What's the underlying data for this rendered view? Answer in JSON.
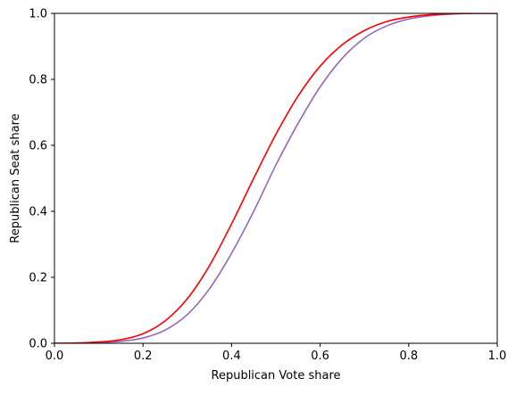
{
  "chart_data": {
    "type": "line",
    "title": "",
    "xlabel": "Republican Vote share",
    "ylabel": "Republican Seat share",
    "xlim": [
      0.0,
      1.0
    ],
    "ylim": [
      0.0,
      1.0
    ],
    "xticks": [
      "0.0",
      "0.2",
      "0.4",
      "0.6",
      "0.8",
      "1.0"
    ],
    "yticks": [
      "0.0",
      "0.2",
      "0.4",
      "0.6",
      "0.8",
      "1.0"
    ],
    "grid": false,
    "legend": "none",
    "series": [
      {
        "color": "#ff0000",
        "x": [
          0.0,
          0.05,
          0.1,
          0.15,
          0.2,
          0.25,
          0.3,
          0.35,
          0.4,
          0.45,
          0.5,
          0.55,
          0.6,
          0.65,
          0.7,
          0.75,
          0.8,
          0.85,
          0.9,
          0.95,
          1.0
        ],
        "y": [
          0.0,
          0.001,
          0.004,
          0.011,
          0.029,
          0.068,
          0.135,
          0.235,
          0.362,
          0.5,
          0.633,
          0.749,
          0.84,
          0.905,
          0.948,
          0.975,
          0.989,
          0.996,
          0.999,
          1.0,
          1.0
        ]
      },
      {
        "color": "#9467bd",
        "x": [
          0.0,
          0.05,
          0.1,
          0.15,
          0.2,
          0.25,
          0.3,
          0.35,
          0.4,
          0.45,
          0.5,
          0.55,
          0.6,
          0.65,
          0.7,
          0.75,
          0.8,
          0.85,
          0.9,
          0.95,
          1.0
        ],
        "y": [
          0.0,
          0.0,
          0.002,
          0.006,
          0.016,
          0.04,
          0.087,
          0.165,
          0.273,
          0.4,
          0.54,
          0.666,
          0.777,
          0.864,
          0.925,
          0.962,
          0.983,
          0.993,
          0.998,
          1.0,
          1.0
        ]
      }
    ]
  }
}
